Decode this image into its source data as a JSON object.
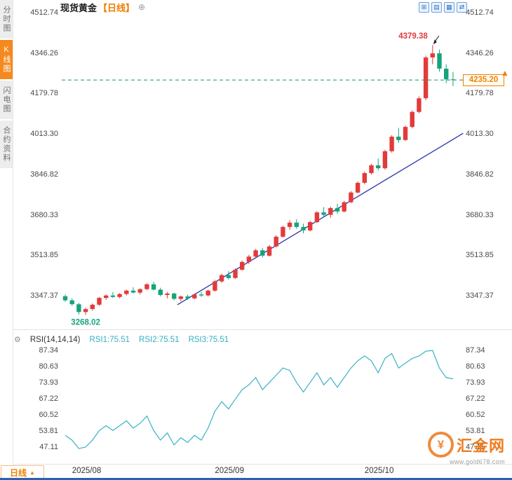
{
  "sidebar": {
    "tabs": [
      {
        "id": "time-chart",
        "label": "分时图",
        "active": false
      },
      {
        "id": "kline-chart",
        "label": "K线图",
        "active": true
      },
      {
        "id": "flash-chart",
        "label": "闪电图",
        "active": false
      },
      {
        "id": "contract-info",
        "label": "合约资料",
        "active": false
      }
    ]
  },
  "header": {
    "symbol": "现货黄金",
    "period": "【日线】",
    "expand_icon": "⊕",
    "tool_icons": [
      {
        "name": "panel-grid-icon",
        "glyph": "⊞"
      },
      {
        "name": "candle-chart-icon",
        "glyph": "▤"
      },
      {
        "name": "indicator-panel-icon",
        "glyph": "▦"
      },
      {
        "name": "swap-arrows-icon",
        "glyph": "⇄"
      }
    ]
  },
  "annotations": {
    "high": "4379.38",
    "low": "3268.02",
    "last_price": "4235.20",
    "up_arrow": "▲"
  },
  "rsi": {
    "settings_icon": "⚙",
    "label": "RSI(14,14,14)",
    "r1": "RSI1:75.51",
    "r2": "RSI2:75.51",
    "r3": "RSI3:75.51"
  },
  "xaxis": {
    "period_button": "日线",
    "period_arrow": "▲",
    "labels": [
      {
        "text": "2025/08",
        "index": 1
      },
      {
        "text": "2025/09",
        "index": 22
      },
      {
        "text": "2025/10",
        "index": 44
      }
    ]
  },
  "watermark": {
    "coin_symbol": "¥",
    "name": "汇金网",
    "url": "www.gold678.com"
  },
  "colors": {
    "up": "#e23b3b",
    "down": "#16a37b",
    "trend": "#2433ad",
    "price_line": "#27a08c",
    "rsi_line": "#38b2c4",
    "accent_orange": "#f08300",
    "axis_text": "#4a4a4a"
  },
  "chart_data": [
    {
      "type": "candlestick",
      "title": "现货黄金 日线",
      "grid": false,
      "legend_position": "none",
      "ylim": [
        3223,
        4512.74
      ],
      "y_ticks": [
        "4512.74",
        "4346.26",
        "4179.78",
        "4013.30",
        "3846.82",
        "3680.33",
        "3513.85",
        "3347.37"
      ],
      "up_color": "#e23b3b",
      "down_color": "#16a37b",
      "current_price": 4235.2,
      "high": 4379.38,
      "low": 3268.02,
      "trendline": {
        "from": {
          "index": 16.5,
          "price": 3310
        },
        "to": {
          "index": 58.5,
          "price": 4016
        }
      },
      "x": [
        "2025/07/31",
        "2025/08/01",
        "2025/08/04",
        "2025/08/05",
        "2025/08/06",
        "2025/08/07",
        "2025/08/08",
        "2025/08/11",
        "2025/08/12",
        "2025/08/13",
        "2025/08/14",
        "2025/08/15",
        "2025/08/18",
        "2025/08/19",
        "2025/08/20",
        "2025/08/21",
        "2025/08/22",
        "2025/08/25",
        "2025/08/26",
        "2025/08/27",
        "2025/08/28",
        "2025/08/29",
        "2025/09/01",
        "2025/09/02",
        "2025/09/03",
        "2025/09/04",
        "2025/09/05",
        "2025/09/08",
        "2025/09/09",
        "2025/09/10",
        "2025/09/11",
        "2025/09/12",
        "2025/09/15",
        "2025/09/16",
        "2025/09/17",
        "2025/09/18",
        "2025/09/19",
        "2025/09/22",
        "2025/09/23",
        "2025/09/24",
        "2025/09/25",
        "2025/09/26",
        "2025/09/29",
        "2025/09/30",
        "2025/10/01",
        "2025/10/02",
        "2025/10/03",
        "2025/10/06",
        "2025/10/07",
        "2025/10/08",
        "2025/10/09",
        "2025/10/10",
        "2025/10/13",
        "2025/10/14",
        "2025/10/15",
        "2025/10/16",
        "2025/10/17",
        "2025/10/20"
      ],
      "ohlc": [
        [
          3345,
          3352,
          3322,
          3328
        ],
        [
          3328,
          3336,
          3305,
          3312
        ],
        [
          3312,
          3318,
          3270,
          3280
        ],
        [
          3280,
          3298,
          3268.02,
          3292
        ],
        [
          3292,
          3315,
          3285,
          3310
        ],
        [
          3310,
          3342,
          3305,
          3338
        ],
        [
          3338,
          3352,
          3330,
          3348
        ],
        [
          3348,
          3362,
          3338,
          3342
        ],
        [
          3342,
          3358,
          3336,
          3354
        ],
        [
          3354,
          3372,
          3348,
          3368
        ],
        [
          3368,
          3382,
          3356,
          3360
        ],
        [
          3360,
          3378,
          3352,
          3374
        ],
        [
          3374,
          3398,
          3370,
          3394
        ],
        [
          3394,
          3404,
          3368,
          3372
        ],
        [
          3372,
          3380,
          3344,
          3350
        ],
        [
          3350,
          3362,
          3336,
          3356
        ],
        [
          3356,
          3360,
          3328,
          3334
        ],
        [
          3334,
          3348,
          3324,
          3344
        ],
        [
          3344,
          3352,
          3330,
          3336
        ],
        [
          3336,
          3356,
          3332,
          3352
        ],
        [
          3352,
          3362,
          3342,
          3348
        ],
        [
          3348,
          3372,
          3344,
          3368
        ],
        [
          3368,
          3412,
          3364,
          3406
        ],
        [
          3406,
          3438,
          3400,
          3432
        ],
        [
          3432,
          3448,
          3414,
          3420
        ],
        [
          3420,
          3460,
          3416,
          3454
        ],
        [
          3454,
          3492,
          3450,
          3486
        ],
        [
          3486,
          3516,
          3478,
          3508
        ],
        [
          3508,
          3540,
          3500,
          3534
        ],
        [
          3534,
          3544,
          3504,
          3512
        ],
        [
          3512,
          3556,
          3508,
          3550
        ],
        [
          3550,
          3596,
          3546,
          3590
        ],
        [
          3590,
          3636,
          3586,
          3630
        ],
        [
          3630,
          3658,
          3618,
          3648
        ],
        [
          3648,
          3662,
          3622,
          3630
        ],
        [
          3630,
          3644,
          3604,
          3616
        ],
        [
          3616,
          3656,
          3612,
          3650
        ],
        [
          3650,
          3696,
          3646,
          3690
        ],
        [
          3690,
          3712,
          3672,
          3680
        ],
        [
          3680,
          3714,
          3668,
          3708
        ],
        [
          3708,
          3726,
          3684,
          3694
        ],
        [
          3694,
          3738,
          3690,
          3732
        ],
        [
          3732,
          3778,
          3728,
          3772
        ],
        [
          3772,
          3818,
          3768,
          3812
        ],
        [
          3812,
          3858,
          3806,
          3852
        ],
        [
          3852,
          3890,
          3846,
          3884
        ],
        [
          3884,
          3912,
          3862,
          3872
        ],
        [
          3872,
          3948,
          3866,
          3942
        ],
        [
          3942,
          4008,
          3936,
          4002
        ],
        [
          4002,
          4038,
          3976,
          3988
        ],
        [
          3988,
          4048,
          3984,
          4042
        ],
        [
          4042,
          4110,
          4036,
          4104
        ],
        [
          4104,
          4168,
          4098,
          4160
        ],
        [
          4160,
          4336,
          4152,
          4328
        ],
        [
          4328,
          4379.38,
          4300,
          4345
        ],
        [
          4345,
          4360,
          4270,
          4282
        ],
        [
          4282,
          4300,
          4222,
          4238
        ],
        [
          4238,
          4268,
          4210,
          4235.2
        ]
      ]
    },
    {
      "type": "line",
      "name": "RSI(14,14,14)",
      "color": "#38b2c4",
      "ylim": [
        47.11,
        87.34
      ],
      "ticks": [
        "87.34",
        "80.63",
        "73.93",
        "67.22",
        "60.52",
        "53.81",
        "47.11"
      ],
      "values": [
        52,
        50,
        46.5,
        47.1,
        50,
        54,
        56,
        54,
        56,
        58,
        55,
        57,
        60,
        54,
        50,
        53,
        48,
        51,
        49,
        52,
        50,
        55,
        62,
        66,
        63,
        67,
        71,
        73,
        76,
        71,
        74,
        77,
        80,
        79,
        74,
        70,
        74,
        78,
        73,
        76,
        72,
        76,
        80,
        83,
        85,
        83,
        78,
        84,
        86,
        80,
        82,
        84,
        85,
        87,
        87.3,
        80,
        76,
        75.5
      ]
    }
  ]
}
